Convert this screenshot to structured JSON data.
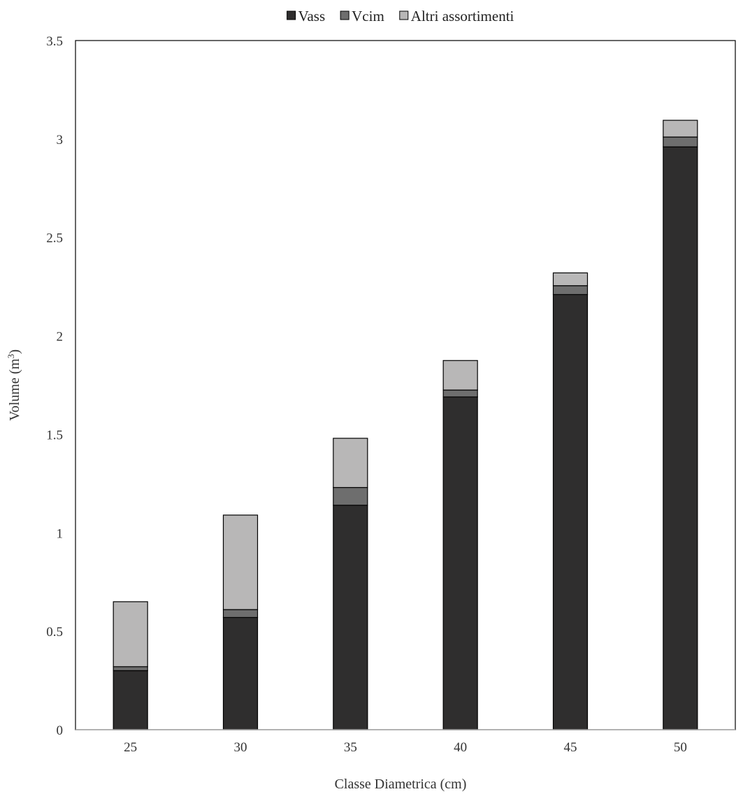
{
  "chart_data": {
    "type": "bar",
    "stacked": true,
    "categories": [
      "25",
      "30",
      "35",
      "40",
      "45",
      "50"
    ],
    "series": [
      {
        "name": "Vass",
        "color": "#2f2e2e",
        "values": [
          0.3,
          0.57,
          1.14,
          1.69,
          2.21,
          2.96
        ]
      },
      {
        "name": "Vcim",
        "color": "#6e6e6e",
        "values": [
          0.02,
          0.04,
          0.09,
          0.035,
          0.045,
          0.05
        ]
      },
      {
        "name": "Altri assortimenti",
        "color": "#b8b7b7",
        "values": [
          0.33,
          0.48,
          0.25,
          0.15,
          0.065,
          0.085
        ]
      }
    ],
    "title": "",
    "xlabel": "Classe Diametrica (cm)",
    "ylabel_main": "Volume (m",
    "ylabel_sup": "3",
    "ylabel_close": ")",
    "ylim": [
      0,
      3.5
    ],
    "yticks": [
      "0",
      "0.5",
      "1",
      "1.5",
      "2",
      "2.5",
      "3",
      "3.5"
    ],
    "grid": false,
    "legend_position": "top"
  }
}
